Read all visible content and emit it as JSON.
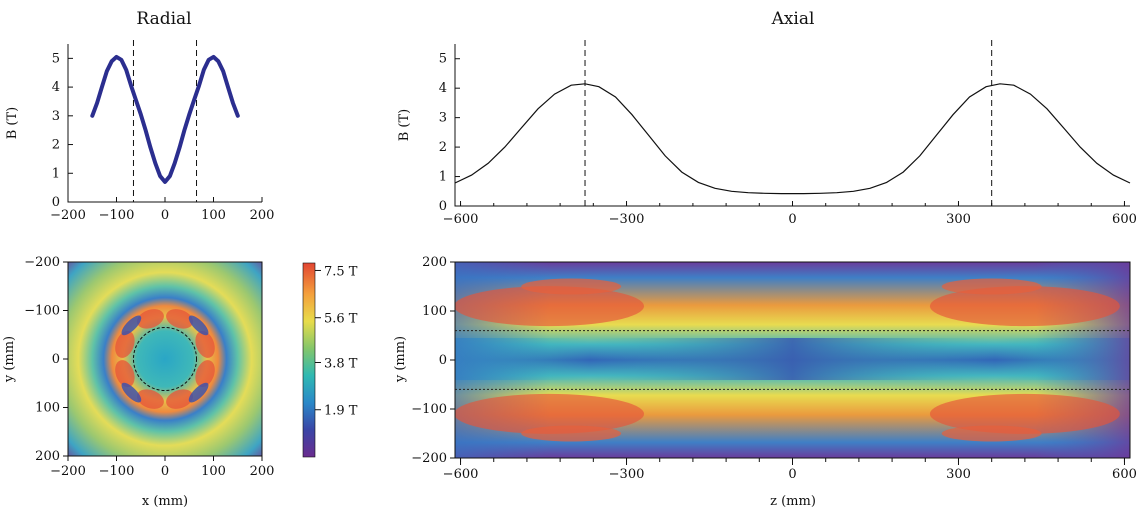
{
  "chart_data": [
    {
      "id": "radial_profile",
      "type": "line",
      "title": "Radial",
      "xlabel": "",
      "ylabel": "B (T)",
      "xlim": [
        -200,
        200
      ],
      "ylim": [
        0,
        5.5
      ],
      "xticks": [
        -200,
        -100,
        0,
        100,
        200
      ],
      "yticks": [
        0,
        1,
        2,
        3,
        4,
        5
      ],
      "x": [
        -150,
        -140,
        -130,
        -120,
        -110,
        -100,
        -90,
        -80,
        -70,
        -60,
        -50,
        -40,
        -30,
        -20,
        -10,
        0,
        10,
        20,
        30,
        40,
        50,
        60,
        70,
        80,
        90,
        100,
        110,
        120,
        130,
        140,
        150
      ],
      "y": [
        3.0,
        3.45,
        4.0,
        4.55,
        4.9,
        5.05,
        4.95,
        4.6,
        4.05,
        3.55,
        3.05,
        2.5,
        1.9,
        1.35,
        0.9,
        0.7,
        0.9,
        1.35,
        1.9,
        2.5,
        3.05,
        3.55,
        4.05,
        4.6,
        4.95,
        5.05,
        4.9,
        4.55,
        4.0,
        3.45,
        3.0
      ],
      "vlines": [
        -65,
        65
      ],
      "line_color": "#2b2e8f"
    },
    {
      "id": "axial_profile",
      "type": "line",
      "title": "Axial",
      "xlabel": "",
      "ylabel": "B (T)",
      "xlim": [
        -610,
        610
      ],
      "ylim": [
        0,
        5.5
      ],
      "xticks": [
        -600,
        -300,
        0,
        300,
        600
      ],
      "yticks": [
        0,
        1,
        2,
        3,
        4,
        5
      ],
      "x": [
        -610,
        -580,
        -550,
        -520,
        -490,
        -460,
        -430,
        -400,
        -375,
        -350,
        -320,
        -290,
        -260,
        -230,
        -200,
        -170,
        -140,
        -110,
        -80,
        -50,
        -20,
        0,
        20,
        50,
        80,
        110,
        140,
        170,
        200,
        230,
        260,
        290,
        320,
        350,
        375,
        400,
        430,
        460,
        490,
        520,
        550,
        580,
        610
      ],
      "y": [
        0.78,
        1.05,
        1.45,
        2.0,
        2.65,
        3.3,
        3.8,
        4.1,
        4.15,
        4.05,
        3.7,
        3.1,
        2.4,
        1.7,
        1.15,
        0.8,
        0.6,
        0.5,
        0.45,
        0.43,
        0.42,
        0.42,
        0.42,
        0.43,
        0.45,
        0.5,
        0.6,
        0.8,
        1.15,
        1.7,
        2.4,
        3.1,
        3.7,
        4.05,
        4.15,
        4.1,
        3.8,
        3.3,
        2.65,
        2.0,
        1.45,
        1.05,
        0.78
      ],
      "vlines": [
        -375,
        360
      ],
      "line_color": "#111111"
    },
    {
      "id": "radial_map",
      "type": "heatmap",
      "xlabel": "x (mm)",
      "ylabel": "y (mm)",
      "xlim": [
        -200,
        200
      ],
      "ylim": [
        -200,
        200
      ],
      "xticks": [
        -200,
        -100,
        0,
        100,
        200
      ],
      "yticks": [
        -200,
        -100,
        0,
        100,
        200
      ],
      "circle_radius": 65,
      "colorbar": {
        "labels": [
          "7.5 T",
          "5.6 T",
          "3.8 T",
          "1.9 T"
        ],
        "values": [
          7.5,
          5.6,
          3.8,
          1.9
        ],
        "range": [
          0,
          7.8
        ],
        "colors": [
          "#6a2c8f",
          "#3a45a6",
          "#2a88c8",
          "#2fb9b2",
          "#84c66a",
          "#e8dc4a",
          "#f4a03c",
          "#e24632"
        ]
      }
    },
    {
      "id": "axial_map",
      "type": "heatmap",
      "xlabel": "z (mm)",
      "ylabel": "y (mm)",
      "xlim": [
        -610,
        610
      ],
      "ylim": [
        -200,
        200
      ],
      "xticks": [
        -600,
        -300,
        0,
        300,
        600
      ],
      "yticks": [
        200,
        100,
        0,
        -100,
        -200
      ],
      "hlines": [
        60,
        -60
      ]
    }
  ]
}
